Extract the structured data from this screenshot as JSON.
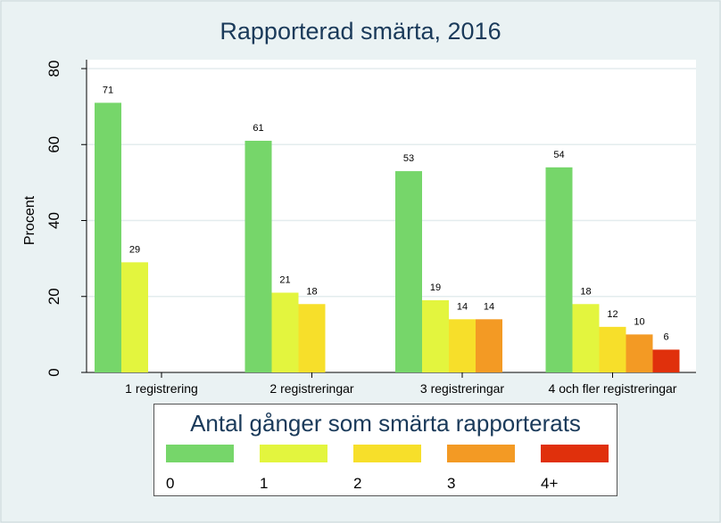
{
  "chart_data": {
    "type": "bar",
    "title": "Rapporterad smärta, 2016",
    "ylabel": "Procent",
    "ylim": [
      0,
      80
    ],
    "yticks": [
      0,
      20,
      40,
      60,
      80
    ],
    "grid": true,
    "categories": [
      "1 registrering",
      "2 registreringar",
      "3 registreringar",
      "4 och fler registreringar"
    ],
    "series": [
      {
        "name": "0",
        "color": "#76d66a",
        "values": [
          71,
          61,
          53,
          54
        ]
      },
      {
        "name": "1",
        "color": "#e3f53e",
        "values": [
          29,
          21,
          19,
          18
        ]
      },
      {
        "name": "2",
        "color": "#f7df2a",
        "values": [
          null,
          18,
          14,
          12
        ]
      },
      {
        "name": "3",
        "color": "#f39a24",
        "values": [
          null,
          null,
          14,
          10
        ]
      },
      {
        "name": "4+",
        "color": "#e0300c",
        "values": [
          null,
          null,
          null,
          6
        ]
      }
    ],
    "legend_title": "Antal gånger som smärta rapporterats",
    "legend_position": "bottom"
  }
}
